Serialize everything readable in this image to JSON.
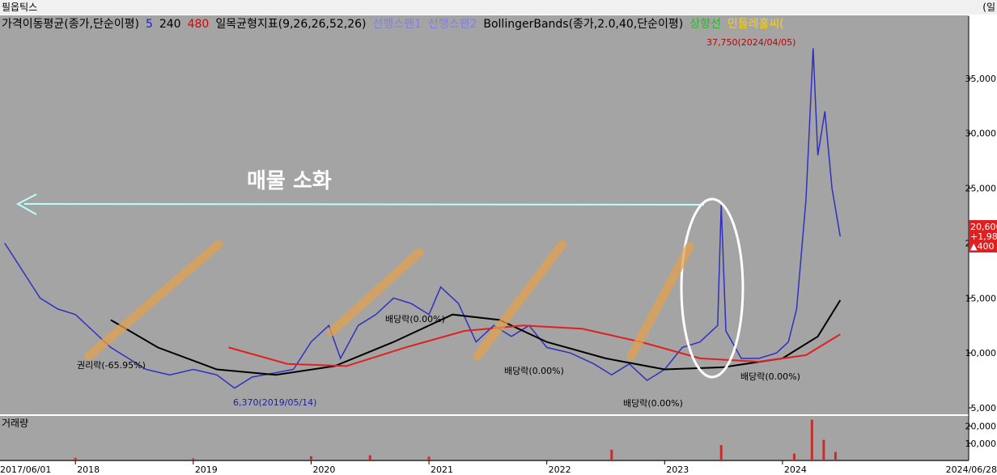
{
  "chart_data": {
    "type": "line",
    "title": "필옵틱스",
    "period_label": "(일",
    "legend": [
      "가격이동평균(종가,단순이평)",
      "5",
      "240",
      "480",
      "일목균형지표(9,26,26,52,26)",
      "선행스팬1",
      "선행스팬2",
      "BollingerBands(종가,2.0,40,단순이평)",
      "상향선",
      "민들레홀씨("
    ],
    "annotation": "매물 소화",
    "notes": [
      "37,750(2024/04/05)",
      "6,370(2019/05/14)",
      "권리락(-65.95%)",
      "배당락(0.00%)",
      "배당락(0.00%)",
      "배당락(0.00%)",
      "배당락(0.00%)"
    ],
    "price_box": [
      "20,600",
      "+1,98",
      "▲400"
    ],
    "x_start_label": "2017/06/01",
    "x_end_label": "2024/06/28",
    "xlim": [
      2017.36,
      2025.58
    ],
    "xticks": [
      2018,
      2019,
      2020,
      2021,
      2022,
      2023,
      2024
    ],
    "ylim": [
      4412,
      40662
    ],
    "yticks": [
      {
        "value": 5000,
        "label": "5,000"
      },
      {
        "value": 10000,
        "label": "10,000"
      },
      {
        "value": 15000,
        "label": "15,000"
      },
      {
        "value": 20000,
        "label": "20,000"
      },
      {
        "value": 25000,
        "label": "25,000"
      },
      {
        "value": 30000,
        "label": "30,000"
      },
      {
        "value": 35000,
        "label": "35,000"
      }
    ],
    "series": [
      {
        "name": "종가",
        "color": "#3030c0",
        "x": [
          2017.4,
          2017.55,
          2017.7,
          2017.85,
          2018.0,
          2018.15,
          2018.3,
          2018.45,
          2018.6,
          2018.8,
          2019.0,
          2019.2,
          2019.35,
          2019.5,
          2019.7,
          2019.85,
          2020.0,
          2020.15,
          2020.25,
          2020.4,
          2020.55,
          2020.7,
          2020.85,
          2021.0,
          2021.1,
          2021.25,
          2021.4,
          2021.55,
          2021.7,
          2021.85,
          2022.0,
          2022.2,
          2022.4,
          2022.55,
          2022.7,
          2022.85,
          2023.0,
          2023.15,
          2023.3,
          2023.45,
          2023.48,
          2023.52,
          2023.65,
          2023.8,
          2023.95,
          2024.05,
          2024.12,
          2024.2,
          2024.26,
          2024.3,
          2024.36,
          2024.42,
          2024.49
        ],
        "values": [
          20000,
          17500,
          15000,
          14000,
          13500,
          12000,
          10500,
          9500,
          8500,
          8000,
          8500,
          8000,
          6800,
          7800,
          8200,
          8500,
          11000,
          12500,
          9500,
          12500,
          13500,
          15000,
          14500,
          13500,
          16000,
          14500,
          11000,
          12500,
          11500,
          12500,
          10500,
          10000,
          9000,
          8000,
          9000,
          7500,
          8500,
          10500,
          11000,
          12500,
          23500,
          12000,
          9500,
          9500,
          10000,
          11000,
          14000,
          24000,
          37750,
          28000,
          32000,
          25000,
          20600
        ]
      },
      {
        "name": "240",
        "color": "#000000",
        "x": [
          2018.3,
          2018.7,
          2019.2,
          2019.7,
          2020.2,
          2020.7,
          2021.2,
          2021.6,
          2022.0,
          2022.5,
          2023.0,
          2023.5,
          2024.0,
          2024.3,
          2024.49
        ],
        "values": [
          13000,
          10500,
          8500,
          8000,
          8800,
          11000,
          13500,
          13000,
          11000,
          9500,
          8500,
          8700,
          9500,
          11500,
          14800
        ]
      },
      {
        "name": "480",
        "color": "#e02020",
        "x": [
          2019.3,
          2019.8,
          2020.3,
          2020.8,
          2021.3,
          2021.8,
          2022.3,
          2022.8,
          2023.3,
          2023.8,
          2024.2,
          2024.49
        ],
        "values": [
          10500,
          9000,
          8800,
          10500,
          12000,
          12500,
          12200,
          11000,
          9500,
          9200,
          9800,
          11700
        ]
      }
    ],
    "volume": {
      "title": "거래량",
      "ylim": [
        0,
        26000
      ],
      "yticks": [
        {
          "value": 10000,
          "label": "10,000"
        },
        {
          "value": 20000,
          "label": "20,000"
        }
      ],
      "x": [
        2018.0,
        2019.0,
        2020.0,
        2020.5,
        2021.0,
        2022.55,
        2023.48,
        2024.1,
        2024.25,
        2024.35,
        2024.45
      ],
      "values": [
        1500,
        1200,
        2500,
        3000,
        2200,
        6248,
        9000,
        4000,
        23809,
        12000,
        5000
      ]
    }
  }
}
